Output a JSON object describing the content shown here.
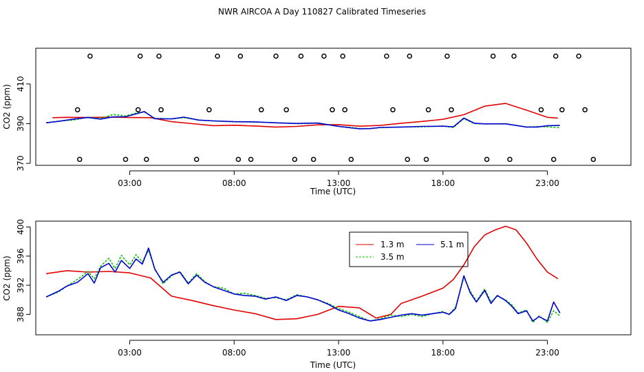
{
  "figure": {
    "title": "NWR AIRCOA A  Day 110827  Calibrated Timeseries"
  },
  "colors": {
    "s1": "#e00000",
    "s2": "#00c000",
    "s3": "#0000d0"
  },
  "chart_data": [
    {
      "type": "line",
      "title": "NWR AIRCOA A  Day 110827  Calibrated Timeseries",
      "xlabel": "Time (UTC)",
      "ylabel": "CO2 (ppm)",
      "xlim": [
        -1.5,
        27
      ],
      "ylim": [
        369,
        428
      ],
      "xticks": [
        3,
        8,
        13,
        18,
        23
      ],
      "xtick_labels": [
        "03:00",
        "08:00",
        "13:00",
        "18:00",
        "23:00"
      ],
      "yticks": [
        370,
        390,
        410
      ],
      "ytick_labels": [
        "370",
        "390",
        "410"
      ],
      "series": [
        {
          "name": "1.3 m",
          "color_key": "s1",
          "dash": "",
          "x": [
            -0.7,
            0,
            1,
            2,
            3,
            4,
            5,
            6,
            7,
            8,
            9,
            10,
            11,
            12,
            13,
            14,
            15,
            16,
            17,
            18,
            19,
            20,
            21,
            22,
            23,
            23.5
          ],
          "values": [
            393,
            393.2,
            393.1,
            393.3,
            393.1,
            393.0,
            391,
            390,
            389,
            389.2,
            388.8,
            388.3,
            388.6,
            389.4,
            389.5,
            388.7,
            389.1,
            390.2,
            391.1,
            392.2,
            394.5,
            398.8,
            400.2,
            396.8,
            393.2,
            392.8
          ]
        },
        {
          "name": "3.5 m",
          "color_key": "s2",
          "dash": "3,2",
          "x": [
            -1,
            -0.3,
            0.3,
            1,
            1.6,
            2.2,
            2.8,
            3.3,
            3.7,
            4.2,
            5,
            5.6,
            6.3,
            7,
            8,
            9,
            10,
            11,
            12,
            13,
            14,
            14.5,
            15,
            16,
            17,
            18,
            18.5,
            19,
            19.5,
            20,
            21,
            22,
            22.5,
            23,
            23.6
          ],
          "values": [
            390.5,
            391.4,
            391.8,
            393.3,
            392.5,
            394.6,
            393.9,
            395.3,
            395.8,
            392.7,
            392.4,
            393.0,
            391.8,
            391.4,
            390.9,
            390.8,
            390.5,
            390.0,
            390.2,
            388.7,
            387.6,
            387.5,
            388.0,
            388.3,
            388.4,
            388.8,
            388.1,
            392.5,
            390.0,
            389.9,
            390.0,
            388.3,
            388.5,
            388.4,
            388.0
          ]
        },
        {
          "name": "5.1 m",
          "color_key": "s3",
          "dash": "",
          "x": [
            -1,
            -0.3,
            0.3,
            1,
            1.6,
            2.2,
            2.8,
            3.3,
            3.7,
            4.2,
            5,
            5.6,
            6.3,
            7,
            8,
            9,
            10,
            11,
            12,
            13,
            14,
            14.5,
            15,
            16,
            17,
            18,
            18.5,
            19,
            19.5,
            20,
            21,
            22,
            22.5,
            23,
            23.6
          ],
          "values": [
            390.4,
            391.3,
            392.3,
            393.1,
            392.3,
            393.4,
            393.5,
            394.9,
            396.1,
            392.5,
            392.4,
            393.3,
            391.8,
            391.4,
            391.0,
            390.9,
            390.4,
            390.1,
            390.3,
            388.6,
            387.4,
            387.5,
            388.1,
            388.3,
            388.6,
            388.7,
            388.4,
            392.8,
            390.2,
            389.9,
            389.9,
            388.3,
            388.3,
            389.0,
            389.1
          ]
        }
      ],
      "markers": {
        "shape": "circle-open",
        "upper_row": {
          "y": 424,
          "x": [
            1.1,
            3.5,
            4.4,
            7.2,
            8.3,
            10,
            11.2,
            12.3,
            13.2,
            15.3,
            16.4,
            18.2,
            20.4,
            21.4,
            23.4,
            24.5
          ]
        },
        "middle_row": {
          "y": 397,
          "x": [
            0.5,
            3.4,
            4.5,
            6.8,
            9.3,
            10.5,
            12.7,
            13.3,
            15.6,
            17.3,
            18.4,
            22.7,
            23.7,
            24.8
          ]
        },
        "lower_row": {
          "y": 372,
          "x": [
            0.6,
            2.8,
            3.8,
            6.2,
            8.2,
            8.8,
            10.9,
            11.8,
            13.6,
            16.3,
            17.2,
            20.1,
            21.2,
            23.3,
            25.2
          ]
        }
      }
    },
    {
      "type": "line",
      "xlabel": "Time (UTC)",
      "ylabel": "CO2 (ppm)",
      "xlim": [
        -1.5,
        27
      ],
      "ylim": [
        385.2,
        400.8
      ],
      "xticks": [
        3,
        8,
        13,
        18,
        23
      ],
      "xtick_labels": [
        "03:00",
        "08:00",
        "13:00",
        "18:00",
        "23:00"
      ],
      "yticks": [
        388,
        392,
        396,
        400
      ],
      "ytick_labels": [
        "388",
        "392",
        "396",
        "400"
      ],
      "legend": {
        "position": "top-center",
        "entries": [
          "1.3 m",
          "3.5 m",
          "5.1 m"
        ]
      },
      "series": [
        {
          "name": "1.3 m",
          "color_key": "s1",
          "dash": "",
          "x": [
            -1,
            0,
            1,
            2,
            3,
            4,
            5,
            6,
            7,
            8,
            9,
            10,
            11,
            12,
            13,
            14,
            14.8,
            15.5,
            16,
            17,
            18,
            18.5,
            19,
            19.5,
            20,
            20.5,
            21,
            21.5,
            22,
            22.5,
            23,
            23.5
          ],
          "values": [
            393.6,
            394.0,
            393.8,
            393.9,
            393.7,
            393.0,
            390.5,
            389.9,
            389.2,
            388.6,
            388.1,
            387.3,
            387.4,
            388.0,
            389.1,
            388.9,
            387.5,
            388.0,
            389.5,
            390.5,
            391.6,
            392.8,
            394.8,
            397.3,
            398.9,
            399.6,
            400.1,
            399.6,
            397.8,
            395.6,
            393.8,
            392.9
          ]
        },
        {
          "name": "3.5 m",
          "color_key": "s2",
          "dash": "3,2",
          "x": [
            -1,
            -0.4,
            0,
            0.5,
            1,
            1.3,
            1.6,
            2,
            2.3,
            2.6,
            3,
            3.3,
            3.6,
            3.9,
            4.2,
            4.6,
            5,
            5.4,
            5.8,
            6.2,
            6.6,
            7,
            7.5,
            8,
            8.5,
            9,
            9.5,
            10,
            10.5,
            11,
            11.5,
            12,
            12.5,
            13,
            13.5,
            14,
            14.5,
            15,
            15.5,
            16,
            16.5,
            17,
            17.5,
            18,
            18.3,
            18.6,
            19,
            19.3,
            19.6,
            20,
            20.3,
            20.6,
            21,
            21.3,
            21.6,
            22,
            22.3,
            22.6,
            23,
            23.3,
            23.6
          ],
          "values": [
            390.4,
            391.1,
            391.9,
            392.8,
            393.9,
            392.9,
            394.6,
            395.7,
            394.3,
            396.1,
            394.8,
            396.2,
            395.2,
            396.8,
            394.3,
            392.2,
            393.3,
            393.9,
            392.3,
            393.6,
            392.5,
            391.8,
            391.6,
            390.8,
            390.9,
            390.6,
            390.2,
            390.3,
            390.0,
            390.7,
            390.4,
            390.0,
            389.5,
            388.8,
            388.3,
            387.7,
            387.1,
            387.4,
            387.9,
            387.7,
            388.0,
            387.7,
            388.1,
            388.4,
            388.0,
            389.0,
            393.1,
            391.2,
            389.8,
            391.5,
            389.7,
            390.5,
            390.0,
            389.3,
            388.2,
            388.6,
            386.9,
            387.8,
            386.9,
            388.5,
            387.8
          ]
        },
        {
          "name": "5.1 m",
          "color_key": "s3",
          "dash": "",
          "x": [
            -1,
            -0.4,
            0,
            0.5,
            1,
            1.3,
            1.6,
            2,
            2.3,
            2.6,
            3,
            3.3,
            3.6,
            3.9,
            4.2,
            4.6,
            5,
            5.4,
            5.8,
            6.2,
            6.6,
            7,
            7.5,
            8,
            8.5,
            9,
            9.5,
            10,
            10.5,
            11,
            11.5,
            12,
            12.5,
            13,
            13.5,
            14,
            14.5,
            15,
            15.5,
            16,
            16.5,
            17,
            17.5,
            18,
            18.3,
            18.6,
            19,
            19.3,
            19.6,
            20,
            20.3,
            20.6,
            21,
            21.3,
            21.6,
            22,
            22.3,
            22.6,
            23,
            23.3,
            23.6
          ],
          "values": [
            390.4,
            391.2,
            391.9,
            392.4,
            393.6,
            392.3,
            394.4,
            395.0,
            393.8,
            395.4,
            394.3,
            395.6,
            394.9,
            397.1,
            394.2,
            392.4,
            393.4,
            393.8,
            392.2,
            393.4,
            392.4,
            391.8,
            391.3,
            390.8,
            390.6,
            390.5,
            390.1,
            390.4,
            389.9,
            390.6,
            390.4,
            390.0,
            389.4,
            388.6,
            388.1,
            387.5,
            387.1,
            387.3,
            387.6,
            387.9,
            388.1,
            387.9,
            388.1,
            388.3,
            388.0,
            388.8,
            393.3,
            391.0,
            389.7,
            391.3,
            389.5,
            390.6,
            389.9,
            389.1,
            388.1,
            388.5,
            387.1,
            387.7,
            387.1,
            389.7,
            388.2
          ]
        }
      ]
    }
  ]
}
